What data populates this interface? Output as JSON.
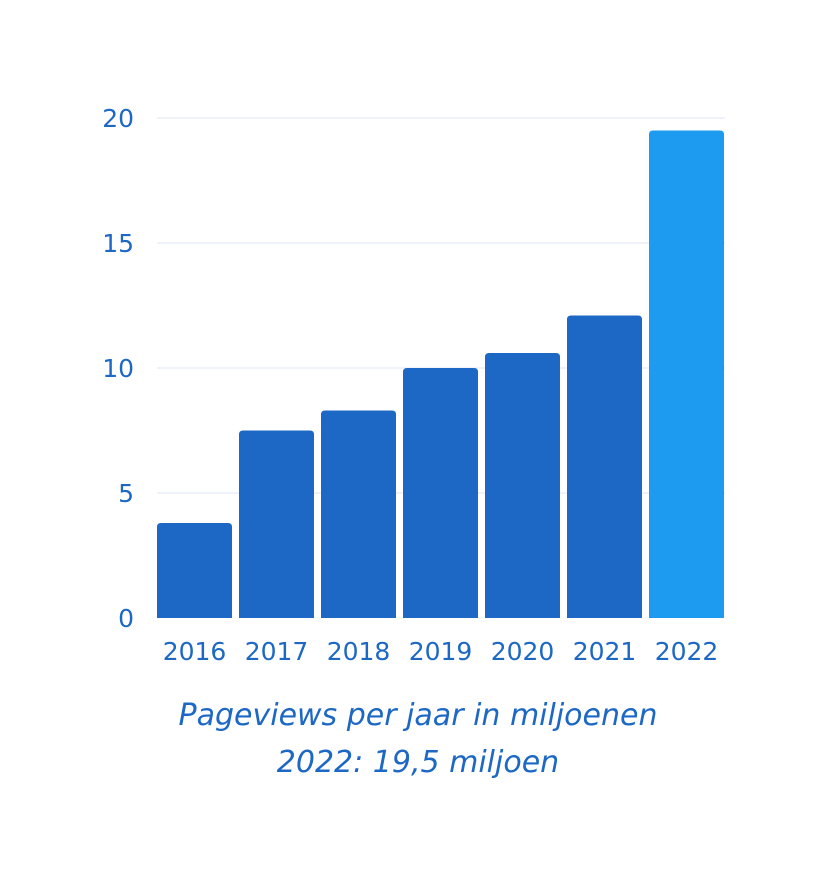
{
  "chart_data": {
    "type": "bar",
    "categories": [
      "2016",
      "2017",
      "2018",
      "2019",
      "2020",
      "2021",
      "2022"
    ],
    "values": [
      3.8,
      7.5,
      8.3,
      10.0,
      10.6,
      12.1,
      19.5
    ],
    "ylim": [
      0,
      20
    ],
    "yticks": [
      0,
      5,
      10,
      15,
      20
    ],
    "grid": true,
    "colors": {
      "default": "#1c68c4",
      "highlight": "#1d9bf0",
      "grid": "#dfe6f0",
      "text": "#1c68c4"
    },
    "highlight_index": 6,
    "title": "Pageviews per jaar in miljoenen",
    "subtitle": "2022: 19,5 miljoen",
    "xlabel": "",
    "ylabel": ""
  }
}
